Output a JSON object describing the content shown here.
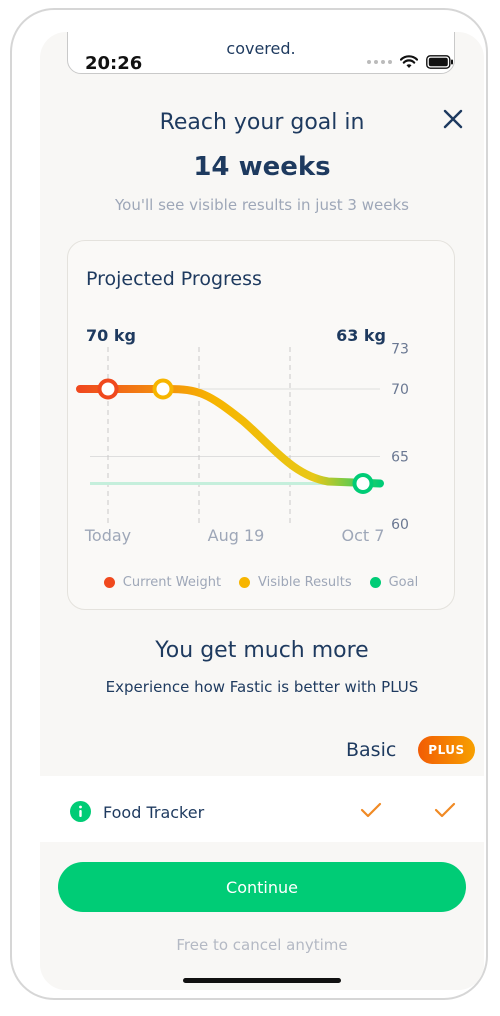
{
  "status_bar": {
    "time": "20:26"
  },
  "notification": {
    "text": "covered."
  },
  "header": {
    "title": "Reach your goal in",
    "weeks": "14 weeks",
    "subtitle": "You'll see visible results in just 3 weeks",
    "close_icon": "close-icon"
  },
  "card": {
    "title": "Projected Progress"
  },
  "chart_data": {
    "type": "line",
    "title": "Projected Progress",
    "start_label": "70 kg",
    "end_label": "63 kg",
    "x_ticks": [
      "Today",
      "Aug 19",
      "Oct 7"
    ],
    "y_ticks": [
      73,
      70,
      65,
      60
    ],
    "ylim": [
      60,
      73
    ],
    "goal_value": 63,
    "series": [
      {
        "name": "Current Weight",
        "color": "#f0491e",
        "x": [
          "Today"
        ],
        "values": [
          70
        ]
      },
      {
        "name": "Visible Results",
        "color": "#f7b500",
        "x": [
          "3 weeks"
        ],
        "values": [
          70
        ]
      },
      {
        "name": "Goal",
        "color": "#00cc76",
        "x": [
          "Oct 7"
        ],
        "values": [
          63
        ]
      }
    ],
    "legend": [
      "Current Weight",
      "Visible Results",
      "Goal"
    ],
    "legend_position": "bottom",
    "grid": true
  },
  "more": {
    "title": "You get much more",
    "subtitle": "Experience how Fastic is better with PLUS"
  },
  "comparison": {
    "basic_label": "Basic",
    "plus_label": "PLUS",
    "rows": [
      {
        "label": "Food Tracker",
        "basic": true,
        "plus": true
      }
    ]
  },
  "footer": {
    "continue_label": "Continue",
    "cancel_text": "Free to cancel anytime"
  }
}
